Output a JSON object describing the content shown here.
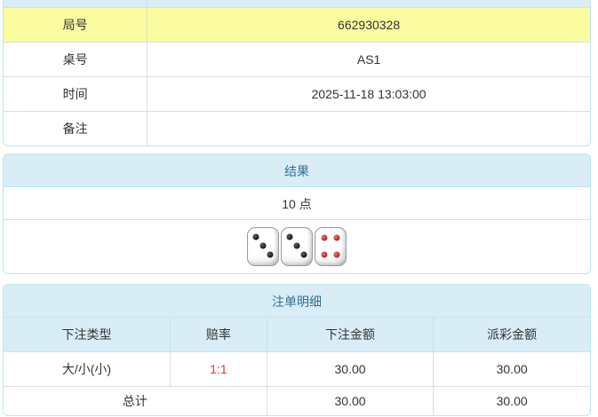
{
  "colors": {
    "header_bg": "#d9edf7",
    "header_text": "#31708f",
    "panel_border": "#bce8f1",
    "highlight": "#fbfb9f",
    "odds_red": "#e03333"
  },
  "info_table": {
    "rows": [
      {
        "label": "局号",
        "value": "662930328"
      },
      {
        "label": "桌号",
        "value": "AS1"
      },
      {
        "label": "时间",
        "value": "2025-11-18 13:03:00"
      },
      {
        "label": "备注",
        "value": ""
      }
    ]
  },
  "result_panel": {
    "title": "结果",
    "points": "10 点",
    "dice": [
      {
        "pips": 3,
        "pip_color": "black"
      },
      {
        "pips": 3,
        "pip_color": "black"
      },
      {
        "pips": 4,
        "pip_color": "red"
      }
    ]
  },
  "bets_panel": {
    "title": "注单明细",
    "columns": [
      "下注类型",
      "赔率",
      "下注金额",
      "派彩金额"
    ],
    "rows": [
      {
        "bet_type": "大/小(小)",
        "odds": "1:1",
        "bet_amount": "30.00",
        "payout_amount": "30.00"
      }
    ],
    "total": {
      "label": "总计",
      "bet_amount": "30.00",
      "payout_amount": "30.00"
    }
  }
}
